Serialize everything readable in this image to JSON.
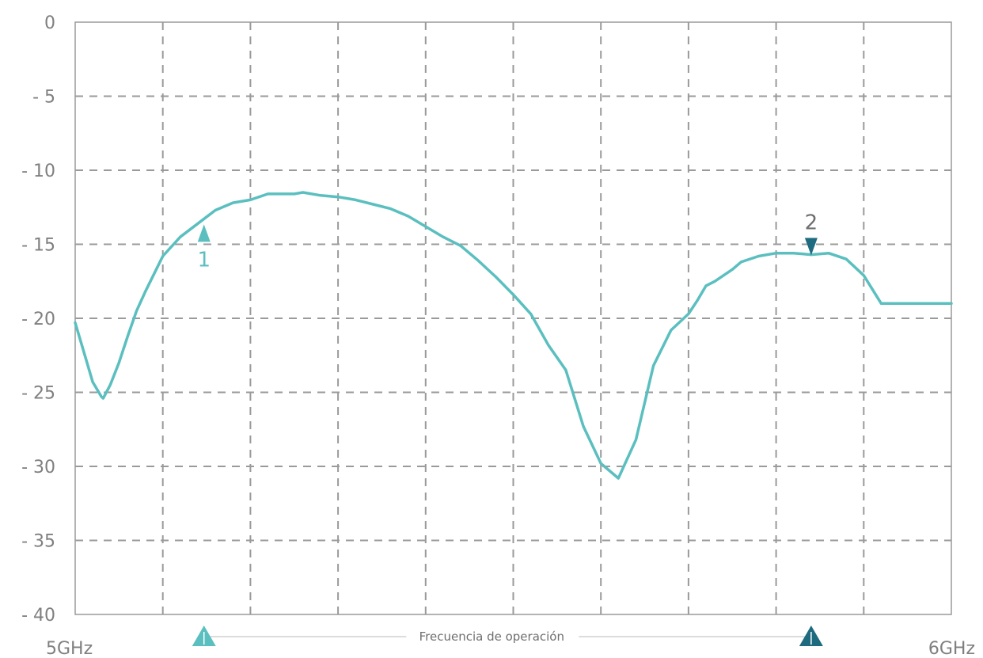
{
  "chart_data": {
    "type": "line",
    "title": "",
    "xlabel": "",
    "ylabel": "",
    "x_tick_labels": {
      "start": "5GHz",
      "end": "6GHz"
    },
    "y_ticks": [
      0,
      -5,
      -10,
      -15,
      -20,
      -25,
      -30,
      -35,
      -40
    ],
    "y_tick_labels": [
      "0",
      "- 5",
      "- 10",
      "- 15",
      "- 20",
      "- 25",
      "- 30",
      "- 35",
      "- 40"
    ],
    "xlim": [
      5.0,
      6.0
    ],
    "ylim": [
      -40,
      0
    ],
    "grid": true,
    "series": [
      {
        "color": "#5bbfbf",
        "x": [
          5.0,
          5.01,
          5.02,
          5.03,
          5.032,
          5.04,
          5.05,
          5.06,
          5.07,
          5.08,
          5.1,
          5.12,
          5.14,
          5.16,
          5.18,
          5.2,
          5.22,
          5.24,
          5.25,
          5.26,
          5.28,
          5.3,
          5.32,
          5.34,
          5.36,
          5.38,
          5.4,
          5.42,
          5.44,
          5.46,
          5.48,
          5.5,
          5.52,
          5.54,
          5.56,
          5.58,
          5.6,
          5.62,
          5.64,
          5.66,
          5.68,
          5.7,
          5.71,
          5.72,
          5.73,
          5.74,
          5.75,
          5.76,
          5.78,
          5.8,
          5.82,
          5.84,
          5.86,
          5.88,
          5.9,
          5.92,
          5.94,
          5.96,
          5.98,
          6.0
        ],
        "values": [
          -20.3,
          -22.3,
          -24.3,
          -25.3,
          -25.4,
          -24.5,
          -23.0,
          -21.2,
          -19.5,
          -18.2,
          -15.8,
          -14.5,
          -13.6,
          -12.7,
          -12.2,
          -12.0,
          -11.6,
          -11.6,
          -11.6,
          -11.5,
          -11.7,
          -11.8,
          -12.0,
          -12.3,
          -12.6,
          -13.1,
          -13.8,
          -14.5,
          -15.1,
          -16.1,
          -17.2,
          -18.4,
          -19.7,
          -21.8,
          -23.5,
          -27.3,
          -29.8,
          -30.8,
          -28.2,
          -23.2,
          -20.8,
          -19.7,
          -18.8,
          -17.8,
          -17.5,
          -17.1,
          -16.7,
          -16.2,
          -15.8,
          -15.6,
          -15.6,
          -15.7,
          -15.6,
          -16.0,
          -17.1,
          -19.0,
          -19.0,
          -19.0,
          -19.0,
          -19.0
        ]
      }
    ],
    "markers": [
      {
        "label": "1",
        "x": 5.147,
        "y": -13.6,
        "direction": "up",
        "color": "#5bbfbf"
      },
      {
        "label": "2",
        "x": 5.84,
        "y": -15.8,
        "direction": "down",
        "color": "#1e6b80"
      }
    ],
    "band": {
      "label": "Frecuencia de operación",
      "start": 5.147,
      "end": 5.84,
      "start_color": "#5bbfbf",
      "end_color": "#1e6b80"
    }
  }
}
